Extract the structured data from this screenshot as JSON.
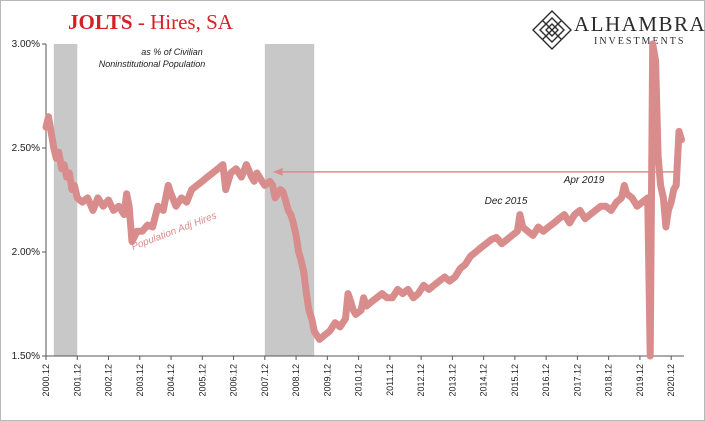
{
  "header": {
    "title_lead": "JOLTS",
    "title_rest": " - Hires, SA"
  },
  "logo": {
    "name": "ALHAMBRA",
    "sub": "INVESTMENTS",
    "icon": "diamond-lattice-icon"
  },
  "colors": {
    "series": "#d98c8c",
    "recession": "#c8c8c8",
    "arrow": "#d98c8c",
    "title": "#d61f26"
  },
  "chart_data": {
    "type": "line",
    "title": "JOLTS - Hires, SA",
    "subtitle": "as % of Civilian Noninstitutional Population",
    "xlabel": "",
    "ylabel": "",
    "ylim": [
      0.015,
      0.03
    ],
    "xlim": [
      2000.92,
      2021.33
    ],
    "y_ticks": [
      "1.50%",
      "2.00%",
      "2.50%",
      "3.00%"
    ],
    "y_tick_values": [
      0.015,
      0.02,
      0.025,
      0.03
    ],
    "x_ticks": [
      "2000.12",
      "2001.12",
      "2002.12",
      "2003.12",
      "2004.12",
      "2005.12",
      "2006.12",
      "2007.12",
      "2008.12",
      "2009.12",
      "2010.12",
      "2011.12",
      "2012.12",
      "2013.12",
      "2014.12",
      "2015.12",
      "2016.12",
      "2017.12",
      "2018.12",
      "2019.12",
      "2020.12"
    ],
    "grid": false,
    "recessions": [
      [
        2001.17,
        2001.92
      ],
      [
        2007.92,
        2009.5
      ]
    ],
    "series": [
      {
        "name": "Population Adj Hires",
        "points": [
          [
            2000.92,
            0.026
          ],
          [
            2001.0,
            0.0265
          ],
          [
            2001.08,
            0.0258
          ],
          [
            2001.17,
            0.025
          ],
          [
            2001.25,
            0.0245
          ],
          [
            2001.33,
            0.0248
          ],
          [
            2001.42,
            0.024
          ],
          [
            2001.5,
            0.0242
          ],
          [
            2001.58,
            0.0236
          ],
          [
            2001.67,
            0.0238
          ],
          [
            2001.75,
            0.023
          ],
          [
            2001.83,
            0.0232
          ],
          [
            2001.92,
            0.0226
          ],
          [
            2002.08,
            0.0224
          ],
          [
            2002.25,
            0.0226
          ],
          [
            2002.42,
            0.022
          ],
          [
            2002.58,
            0.0226
          ],
          [
            2002.75,
            0.0222
          ],
          [
            2002.92,
            0.0225
          ],
          [
            2003.08,
            0.022
          ],
          [
            2003.25,
            0.0222
          ],
          [
            2003.42,
            0.0218
          ],
          [
            2003.5,
            0.0228
          ],
          [
            2003.58,
            0.0222
          ],
          [
            2003.67,
            0.0205
          ],
          [
            2003.83,
            0.021
          ],
          [
            2004.0,
            0.021
          ],
          [
            2004.17,
            0.0213
          ],
          [
            2004.33,
            0.0212
          ],
          [
            2004.5,
            0.0222
          ],
          [
            2004.67,
            0.022
          ],
          [
            2004.83,
            0.0232
          ],
          [
            2004.92,
            0.0228
          ],
          [
            2005.08,
            0.0222
          ],
          [
            2005.25,
            0.0226
          ],
          [
            2005.42,
            0.0224
          ],
          [
            2005.58,
            0.023
          ],
          [
            2005.75,
            0.0232
          ],
          [
            2005.92,
            0.0234
          ],
          [
            2006.08,
            0.0236
          ],
          [
            2006.25,
            0.0238
          ],
          [
            2006.42,
            0.024
          ],
          [
            2006.58,
            0.0242
          ],
          [
            2006.67,
            0.023
          ],
          [
            2006.83,
            0.0238
          ],
          [
            2007.0,
            0.024
          ],
          [
            2007.17,
            0.0236
          ],
          [
            2007.33,
            0.0242
          ],
          [
            2007.5,
            0.0236
          ],
          [
            2007.58,
            0.0234
          ],
          [
            2007.67,
            0.0238
          ],
          [
            2007.83,
            0.0234
          ],
          [
            2007.92,
            0.0232
          ],
          [
            2008.0,
            0.0233
          ],
          [
            2008.08,
            0.0234
          ],
          [
            2008.17,
            0.0232
          ],
          [
            2008.25,
            0.0226
          ],
          [
            2008.33,
            0.0228
          ],
          [
            2008.42,
            0.023
          ],
          [
            2008.5,
            0.0229
          ],
          [
            2008.58,
            0.0225
          ],
          [
            2008.67,
            0.022
          ],
          [
            2008.75,
            0.0218
          ],
          [
            2008.83,
            0.0214
          ],
          [
            2008.92,
            0.0208
          ],
          [
            2009.0,
            0.02
          ],
          [
            2009.08,
            0.0196
          ],
          [
            2009.17,
            0.019
          ],
          [
            2009.25,
            0.018
          ],
          [
            2009.33,
            0.0172
          ],
          [
            2009.42,
            0.0168
          ],
          [
            2009.5,
            0.0162
          ],
          [
            2009.58,
            0.016
          ],
          [
            2009.67,
            0.0158
          ],
          [
            2009.83,
            0.016
          ],
          [
            2010.0,
            0.0162
          ],
          [
            2010.17,
            0.0166
          ],
          [
            2010.33,
            0.0164
          ],
          [
            2010.5,
            0.0168
          ],
          [
            2010.58,
            0.018
          ],
          [
            2010.67,
            0.0176
          ],
          [
            2010.75,
            0.0172
          ],
          [
            2010.83,
            0.017
          ],
          [
            2011.0,
            0.0172
          ],
          [
            2011.08,
            0.0178
          ],
          [
            2011.17,
            0.0174
          ],
          [
            2011.33,
            0.0176
          ],
          [
            2011.5,
            0.0178
          ],
          [
            2011.67,
            0.018
          ],
          [
            2011.83,
            0.0178
          ],
          [
            2012.0,
            0.0178
          ],
          [
            2012.17,
            0.0182
          ],
          [
            2012.33,
            0.018
          ],
          [
            2012.5,
            0.0182
          ],
          [
            2012.67,
            0.0178
          ],
          [
            2012.83,
            0.018
          ],
          [
            2013.0,
            0.0184
          ],
          [
            2013.17,
            0.0182
          ],
          [
            2013.33,
            0.0184
          ],
          [
            2013.5,
            0.0186
          ],
          [
            2013.67,
            0.0188
          ],
          [
            2013.83,
            0.0186
          ],
          [
            2014.0,
            0.0188
          ],
          [
            2014.17,
            0.0192
          ],
          [
            2014.33,
            0.0194
          ],
          [
            2014.5,
            0.0198
          ],
          [
            2014.67,
            0.02
          ],
          [
            2014.83,
            0.0202
          ],
          [
            2015.0,
            0.0204
          ],
          [
            2015.17,
            0.0206
          ],
          [
            2015.33,
            0.0207
          ],
          [
            2015.5,
            0.0204
          ],
          [
            2015.67,
            0.0206
          ],
          [
            2015.83,
            0.0208
          ],
          [
            2016.0,
            0.021
          ],
          [
            2016.08,
            0.0218
          ],
          [
            2016.17,
            0.0212
          ],
          [
            2016.33,
            0.021
          ],
          [
            2016.5,
            0.0208
          ],
          [
            2016.67,
            0.0212
          ],
          [
            2016.83,
            0.021
          ],
          [
            2017.0,
            0.0212
          ],
          [
            2017.17,
            0.0214
          ],
          [
            2017.33,
            0.0216
          ],
          [
            2017.5,
            0.0218
          ],
          [
            2017.67,
            0.0214
          ],
          [
            2017.83,
            0.0218
          ],
          [
            2018.0,
            0.022
          ],
          [
            2018.17,
            0.0216
          ],
          [
            2018.33,
            0.0218
          ],
          [
            2018.5,
            0.022
          ],
          [
            2018.67,
            0.0222
          ],
          [
            2018.83,
            0.0222
          ],
          [
            2019.0,
            0.022
          ],
          [
            2019.17,
            0.0224
          ],
          [
            2019.33,
            0.0226
          ],
          [
            2019.42,
            0.0232
          ],
          [
            2019.5,
            0.0228
          ],
          [
            2019.67,
            0.0226
          ],
          [
            2019.83,
            0.0222
          ],
          [
            2020.0,
            0.0224
          ],
          [
            2020.17,
            0.0226
          ],
          [
            2020.25,
            0.015
          ],
          [
            2020.33,
            0.03
          ],
          [
            2020.42,
            0.0292
          ],
          [
            2020.5,
            0.0246
          ],
          [
            2020.58,
            0.0232
          ],
          [
            2020.67,
            0.0226
          ],
          [
            2020.75,
            0.0212
          ],
          [
            2020.83,
            0.022
          ],
          [
            2020.92,
            0.0224
          ],
          [
            2021.0,
            0.023
          ],
          [
            2021.08,
            0.0232
          ],
          [
            2021.17,
            0.0258
          ],
          [
            2021.25,
            0.0254
          ]
        ]
      }
    ],
    "annotations": [
      {
        "text": "Apr 2019",
        "x": 2019.33,
        "y": 0.0226
      },
      {
        "text": "Dec 2015",
        "x": 2015.92,
        "y": 0.0208
      },
      {
        "text": "Population Adj Hires",
        "x": 2005.0,
        "y": 0.0222
      }
    ]
  }
}
